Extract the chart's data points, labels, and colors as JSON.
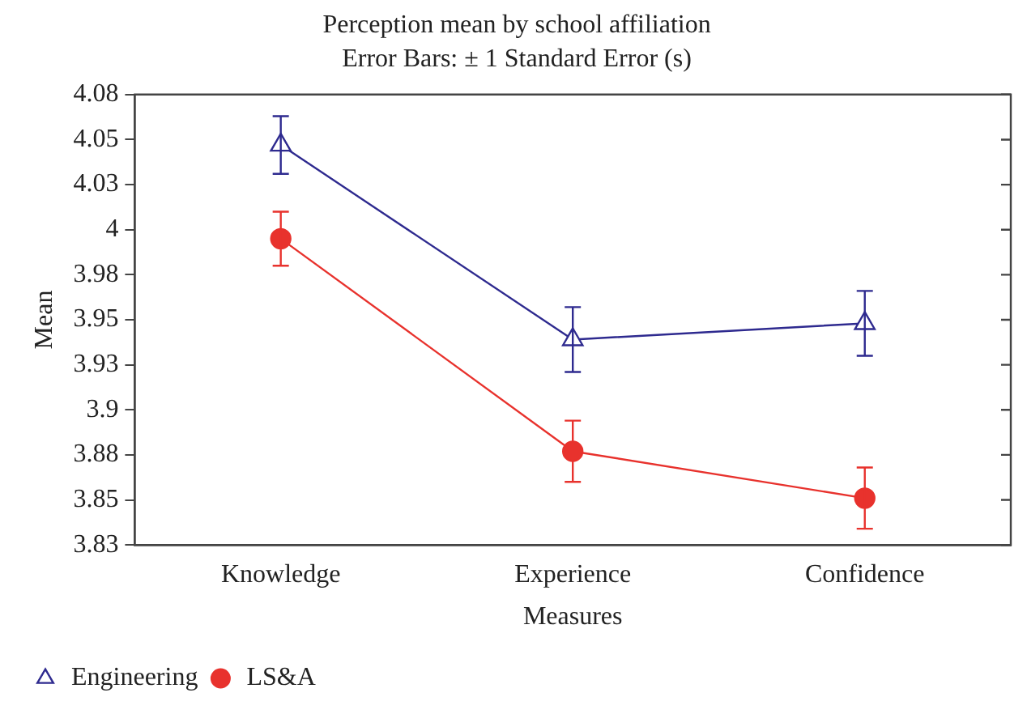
{
  "chart_data": {
    "type": "line",
    "title": "Perception mean by school affiliation",
    "subtitle": "Error Bars: ± 1 Standard Error (s)",
    "xlabel": "Measures",
    "ylabel": "Mean",
    "categories": [
      "Knowledge",
      "Experience",
      "Confidence"
    ],
    "series": [
      {
        "name": "Engineering",
        "color": "#2e2a8f",
        "marker": "triangle",
        "values": [
          4.047,
          3.939,
          3.948
        ],
        "errors": [
          0.016,
          0.018,
          0.018
        ]
      },
      {
        "name": "LS&A",
        "color": "#e8322d",
        "marker": "circle",
        "values": [
          3.995,
          3.877,
          3.851
        ],
        "errors": [
          0.015,
          0.017,
          0.017
        ]
      }
    ],
    "ylim": [
      3.825,
      4.075
    ],
    "yticks": [
      {
        "value": 3.825,
        "label": "3.83"
      },
      {
        "value": 3.85,
        "label": "3.85"
      },
      {
        "value": 3.875,
        "label": "3.88"
      },
      {
        "value": 3.9,
        "label": "3.9"
      },
      {
        "value": 3.925,
        "label": "3.93"
      },
      {
        "value": 3.95,
        "label": "3.95"
      },
      {
        "value": 3.975,
        "label": "3.98"
      },
      {
        "value": 4,
        "label": "4"
      },
      {
        "value": 4.025,
        "label": "4.03"
      },
      {
        "value": 4.05,
        "label": "4.05"
      },
      {
        "value": 4.075,
        "label": "4.08"
      }
    ],
    "grid": false,
    "legend": "bottom left",
    "line_style": "solid"
  }
}
